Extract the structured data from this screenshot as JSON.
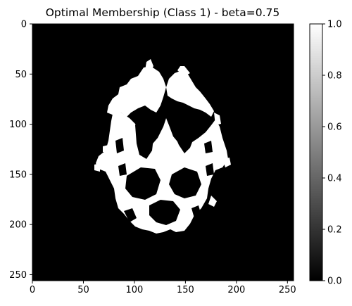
{
  "chart_data": {
    "type": "heatmap",
    "title": "Optimal Membership (Class 1) - beta=0.75",
    "xlabel": "",
    "ylabel": "",
    "image_shape": [
      256,
      256
    ],
    "x_ticks": [
      0,
      50,
      100,
      150,
      200,
      250
    ],
    "y_ticks": [
      0,
      50,
      100,
      150,
      200,
      250
    ],
    "xlim": [
      0,
      256
    ],
    "ylim": [
      256,
      0
    ],
    "colormap": "gray",
    "colorbar": {
      "range": [
        0.0,
        1.0
      ],
      "ticks": [
        "0.0",
        "0.2",
        "0.4",
        "0.6",
        "0.8",
        "1.0"
      ]
    },
    "values_present": [
      0.0,
      1.0
    ],
    "background_value": 0.0,
    "foreground_value": 1.0,
    "content": "binary white-matter membership map of an axial brain slice",
    "colors": {
      "low": "#000000",
      "high": "#ffffff"
    }
  }
}
